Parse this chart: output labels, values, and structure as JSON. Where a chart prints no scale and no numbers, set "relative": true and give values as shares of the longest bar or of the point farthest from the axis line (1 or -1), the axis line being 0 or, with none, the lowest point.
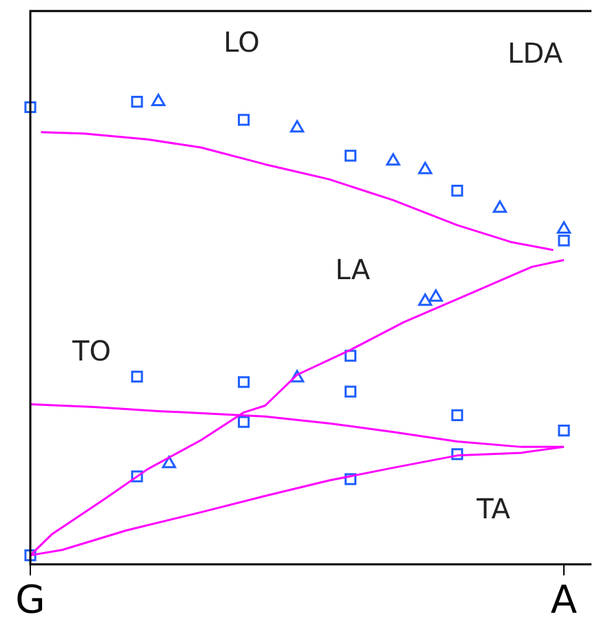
{
  "chart_data": {
    "type": "line",
    "relative": true,
    "grid": false,
    "legend": false,
    "categories": [
      "G",
      null,
      null,
      null,
      null,
      null,
      null,
      null,
      null,
      null,
      null,
      null,
      null,
      null,
      null,
      null,
      null,
      null,
      null,
      null,
      null,
      null,
      null,
      null,
      null,
      null,
      null,
      null,
      null,
      null,
      null,
      null,
      null,
      null,
      null,
      null,
      null,
      null,
      null,
      null,
      null,
      null,
      null,
      null,
      null,
      null,
      null,
      null,
      null,
      null,
      "A"
    ],
    "series": [
      {
        "color": "#ff00ff",
        "line_style": "solid",
        "marker": "none",
        "values": [
          null,
          0.933,
          null,
          null,
          null,
          0.93,
          null,
          null,
          null,
          null,
          null,
          0.917,
          null,
          null,
          null,
          null,
          0.899,
          null,
          null,
          null,
          null,
          null,
          0.862,
          null,
          null,
          null,
          null,
          null,
          0.829,
          null,
          null,
          null,
          null,
          null,
          0.783,
          null,
          null,
          null,
          null,
          null,
          0.728,
          null,
          null,
          null,
          null,
          0.691,
          null,
          null,
          null,
          0.673,
          null
        ]
      },
      {
        "color": "#ff00ff",
        "line_style": "solid",
        "marker": "none",
        "values": [
          0,
          null,
          0.046,
          null,
          null,
          null,
          null,
          0.125,
          null,
          null,
          null,
          0.19,
          null,
          null,
          null,
          null,
          0.254,
          null,
          null,
          null,
          0.315,
          null,
          0.33,
          null,
          null,
          0.398,
          null,
          null,
          null,
          null,
          0.453,
          null,
          null,
          null,
          null,
          0.514,
          null,
          null,
          null,
          null,
          null,
          0.575,
          null,
          null,
          null,
          null,
          null,
          0.636,
          null,
          null,
          0.651
        ]
      },
      {
        "color": "#ff00ff",
        "line_style": "solid",
        "marker": "none",
        "values": [
          0.333,
          null,
          null,
          null,
          null,
          null,
          0.327,
          null,
          null,
          null,
          null,
          null,
          0.318,
          null,
          null,
          null,
          null,
          null,
          null,
          null,
          null,
          null,
          0.306,
          null,
          null,
          null,
          null,
          null,
          0.291,
          null,
          null,
          null,
          null,
          null,
          0.272,
          null,
          null,
          null,
          null,
          null,
          0.251,
          null,
          null,
          null,
          null,
          null,
          0.239,
          null,
          null,
          null,
          0.239
        ]
      },
      {
        "color": "#ff00ff",
        "line_style": "solid",
        "marker": "none",
        "values": [
          0,
          null,
          null,
          0.012,
          null,
          null,
          null,
          null,
          null,
          0.055,
          null,
          null,
          null,
          null,
          null,
          null,
          0.095,
          null,
          null,
          null,
          null,
          null,
          0.131,
          null,
          null,
          null,
          null,
          null,
          0.165,
          null,
          null,
          null,
          null,
          null,
          0.193,
          null,
          null,
          null,
          null,
          null,
          0.22,
          null,
          null,
          null,
          null,
          null,
          0.226,
          null,
          null,
          null,
          0.239
        ]
      },
      {
        "type": "scatter",
        "color": "#1f5fff",
        "marker": "square",
        "values": [
          0.988,
          null,
          null,
          null,
          null,
          null,
          null,
          null,
          null,
          null,
          1,
          null,
          null,
          null,
          null,
          null,
          null,
          null,
          null,
          null,
          0.96,
          null,
          null,
          null,
          null,
          null,
          null,
          null,
          null,
          null,
          0.881,
          null,
          null,
          null,
          null,
          null,
          null,
          null,
          null,
          null,
          0.804,
          null,
          null,
          null,
          null,
          null,
          null,
          null,
          null,
          null,
          0.694
        ]
      },
      {
        "type": "scatter",
        "color": "#1f5fff",
        "marker": "square",
        "values": [
          null,
          null,
          null,
          null,
          null,
          null,
          null,
          null,
          null,
          null,
          0.394,
          null,
          null,
          null,
          null,
          null,
          null,
          null,
          null,
          null,
          0.382,
          null,
          null,
          null,
          null,
          null,
          null,
          null,
          null,
          null,
          0.44,
          null,
          null,
          null,
          null,
          null,
          null,
          null,
          null,
          null,
          0.309,
          null,
          null,
          null,
          null,
          null,
          null,
          null,
          null,
          null,
          0.275
        ]
      },
      {
        "type": "scatter",
        "color": "#1f5fff",
        "marker": "square",
        "values": [
          null,
          null,
          null,
          null,
          null,
          null,
          null,
          null,
          null,
          null,
          0.174,
          null,
          null,
          null,
          null,
          null,
          null,
          null,
          null,
          null,
          0.294,
          null,
          null,
          null,
          null,
          null,
          null,
          null,
          null,
          null,
          0.361,
          null,
          null,
          null,
          null,
          null,
          null,
          null,
          null,
          null,
          0.223,
          null,
          null,
          null,
          null,
          null,
          null,
          null,
          null,
          null,
          null
        ]
      },
      {
        "type": "scatter",
        "color": "#1f5fff",
        "marker": "square",
        "values": [
          0,
          null,
          null,
          null,
          null,
          null,
          null,
          null,
          null,
          null,
          null,
          null,
          null,
          null,
          null,
          null,
          null,
          null,
          null,
          null,
          null,
          null,
          null,
          null,
          null,
          null,
          null,
          null,
          null,
          null,
          0.168,
          null,
          null,
          null,
          null,
          null,
          null,
          null,
          null,
          null,
          null,
          null,
          null,
          null,
          null,
          null,
          null,
          null,
          null,
          null,
          null
        ]
      },
      {
        "type": "scatter",
        "color": "#1f5fff",
        "marker": "triangle",
        "values": [
          null,
          null,
          null,
          null,
          null,
          null,
          null,
          null,
          null,
          null,
          null,
          null,
          1,
          null,
          null,
          null,
          null,
          null,
          null,
          null,
          null,
          null,
          null,
          null,
          null,
          0.942,
          null,
          null,
          null,
          null,
          null,
          null,
          null,
          null,
          0.869,
          null,
          null,
          0.85,
          null,
          null,
          null,
          null,
          null,
          null,
          0.765,
          null,
          null,
          null,
          null,
          null,
          0.719
        ]
      },
      {
        "type": "scatter",
        "color": "#1f5fff",
        "marker": "triangle",
        "values": [
          null,
          null,
          null,
          null,
          null,
          null,
          null,
          null,
          null,
          null,
          null,
          null,
          null,
          0.202,
          null,
          null,
          null,
          null,
          null,
          null,
          null,
          null,
          null,
          null,
          null,
          0.391,
          null,
          null,
          null,
          null,
          null,
          null,
          null,
          null,
          null,
          null,
          null,
          0.56,
          0.569,
          null,
          null,
          null,
          null,
          null,
          null,
          null,
          null,
          null,
          null,
          null,
          null
        ]
      }
    ],
    "annotations": [
      "LO",
      "LDA",
      "LA",
      "TO",
      "TA"
    ]
  }
}
